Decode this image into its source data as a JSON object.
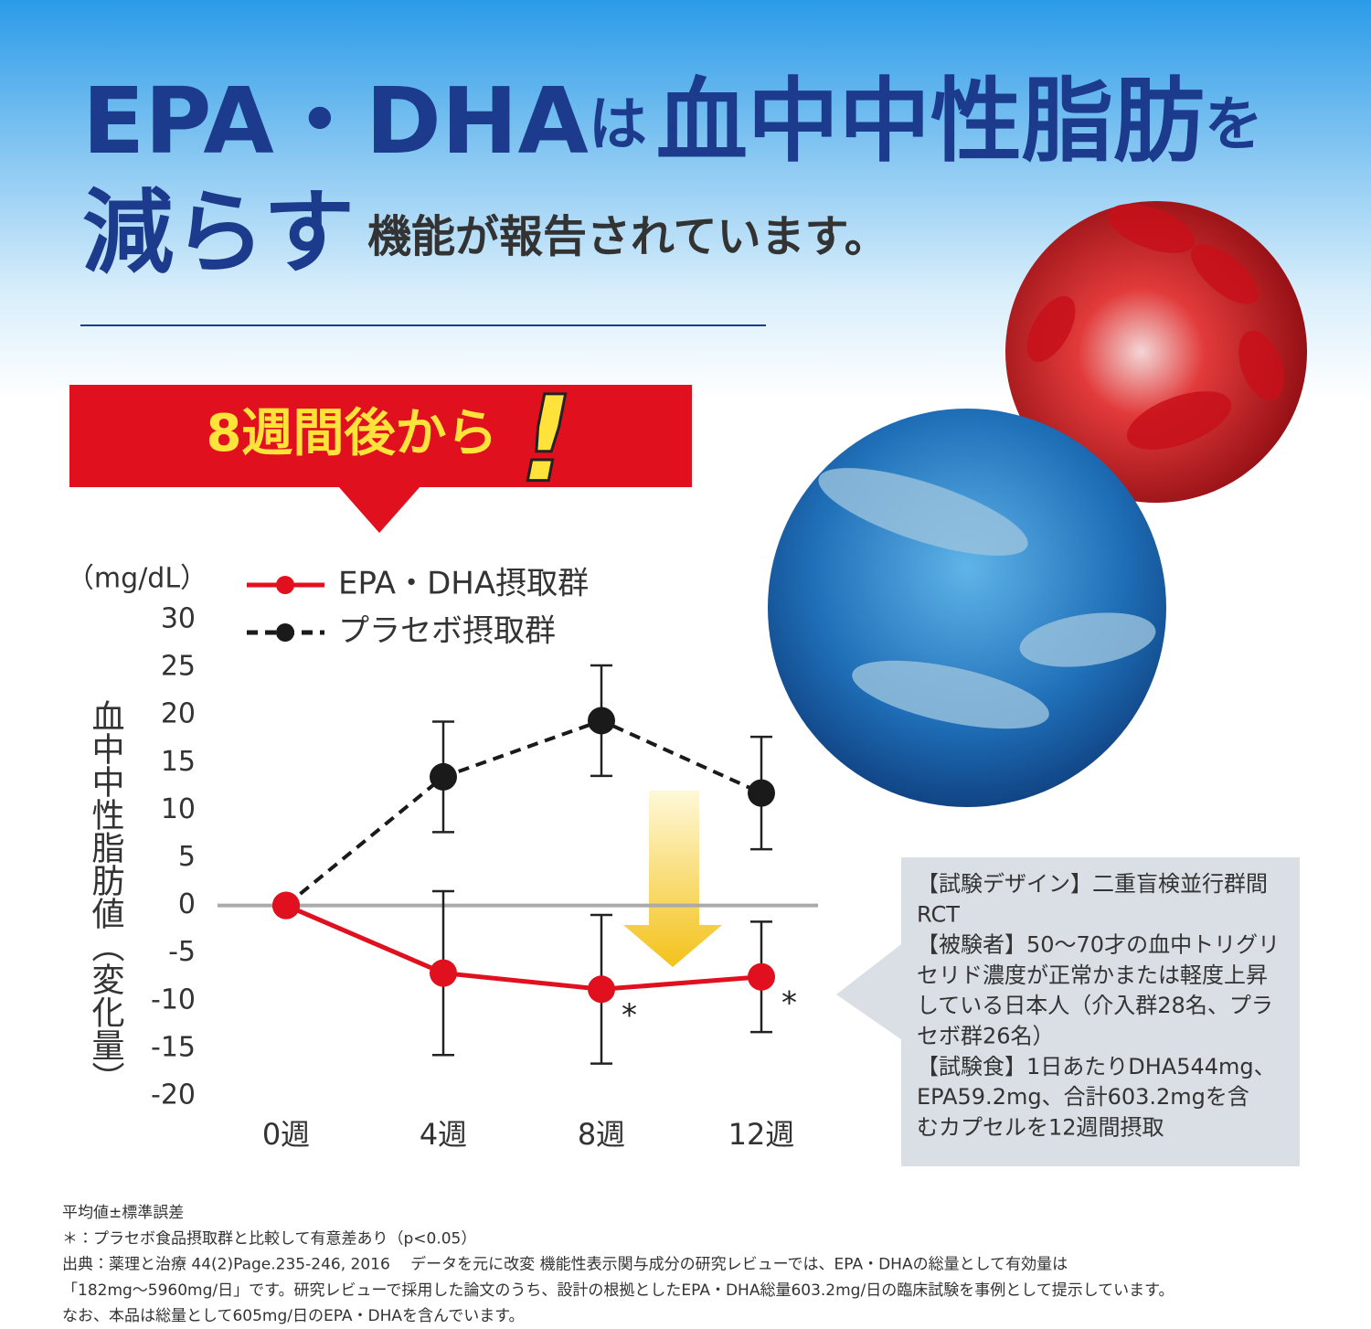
{
  "header": {
    "line1": [
      "EPA・DHA",
      "は",
      "血中中性脂肪",
      "を"
    ],
    "line2": [
      "減らす",
      "機能が報告されています。"
    ]
  },
  "banner": {
    "text": "8週間後から",
    "mark": "!"
  },
  "chart_data": {
    "type": "line",
    "y_unit": "（mg/dL）",
    "y_label": "血中中性脂肪値（変化量）",
    "categories": [
      "0週",
      "4週",
      "8週",
      "12週"
    ],
    "series": [
      {
        "name": "EPA・DHA摂取群",
        "color": "#e0101e",
        "dash": false,
        "values": [
          0,
          -7.1,
          -8.8,
          -7.5
        ],
        "errors": [
          0,
          8.6,
          7.8,
          5.8
        ],
        "significant": [
          false,
          false,
          true,
          true
        ]
      },
      {
        "name": "プラセボ摂取群",
        "color": "#1a1a1a",
        "dash": true,
        "values": [
          0,
          13.5,
          19.4,
          11.8
        ],
        "errors": [
          0,
          5.8,
          5.8,
          5.9
        ],
        "significant": [
          false,
          false,
          false,
          false
        ]
      }
    ],
    "significance_mark": "*",
    "ylim": [
      -20,
      30
    ],
    "yticks": [
      -20,
      -15,
      -10,
      -5,
      0,
      5,
      10,
      15,
      20,
      25,
      30
    ],
    "zero_line": true
  },
  "info_box": {
    "lines": [
      "【試験デザイン】二重盲検並行群間",
      "RCT",
      "【被験者】50〜70才の血中トリグリ",
      "セリド濃度が正常かまたは軽度上昇",
      "している日本人（介入群28名、プラ",
      "セボ群26名）",
      "【試験食】1日あたりDHA544mg、",
      "EPA59.2mg、合計603.2mgを含",
      "むカプセルを12週間摂取"
    ]
  },
  "footnotes": [
    "平均値±標準誤差",
    "＊：プラセボ食品摂取群と比較して有意差あり（p<0.05）",
    "出典：薬理と治療 44(2)Page.235-246, 2016　 データを元に改変 機能性表示関与成分の研究レビューでは、EPA・DHAの総量として有効量は",
    "「182mg〜5960mg/日」です。研究レビューで採用した論文のうち、設計の根拠としたEPA・DHA総量603.2mg/日の臨床試験を事例として提示しています。",
    "なお、本品は総量として605mg/日のEPA・DHAを含んでいます。"
  ]
}
